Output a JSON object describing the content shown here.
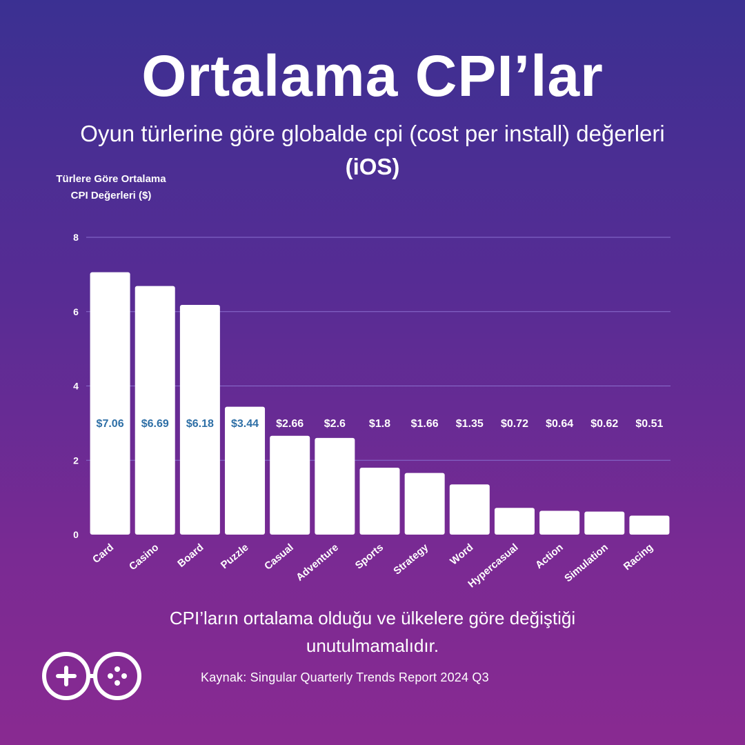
{
  "header": {
    "title": "Ortalama CPI’lar",
    "subtitle_main": "Oyun türlerine göre globalde cpi (cost per install) değerleri",
    "subtitle_bold": "(iOS)"
  },
  "footer": {
    "note": "CPI’ların ortalama olduğu ve ülkelere göre değiştiği unutulmamalıdır.",
    "source": "Kaynak: Singular Quarterly Trends Report 2024 Q3"
  },
  "colors": {
    "bar": "#ffffff",
    "label_inside": "#2e6fa6",
    "label_outside": "#ffffff",
    "grid": "#8a6fd0"
  },
  "chart_data": {
    "type": "bar",
    "ylabel": "Türlere Göre Ortalama CPI Değerleri ($)",
    "ylim": [
      0,
      8
    ],
    "yticks": [
      0,
      2,
      4,
      6,
      8
    ],
    "grid": true,
    "categories": [
      "Card",
      "Casino",
      "Board",
      "Puzzle",
      "Casual",
      "Adventure",
      "Sports",
      "Strategy",
      "Word",
      "Hypercasual",
      "Action",
      "Simulation",
      "Racing"
    ],
    "values": [
      7.06,
      6.69,
      6.18,
      3.44,
      2.66,
      2.6,
      1.8,
      1.66,
      1.35,
      0.72,
      0.64,
      0.62,
      0.51
    ],
    "data_labels": [
      "$7.06",
      "$6.69",
      "$6.18",
      "$3.44",
      "$2.66",
      "$2.6",
      "$1.8",
      "$1.66",
      "$1.35",
      "$0.72",
      "$0.64",
      "$0.62",
      "$0.51"
    ]
  }
}
